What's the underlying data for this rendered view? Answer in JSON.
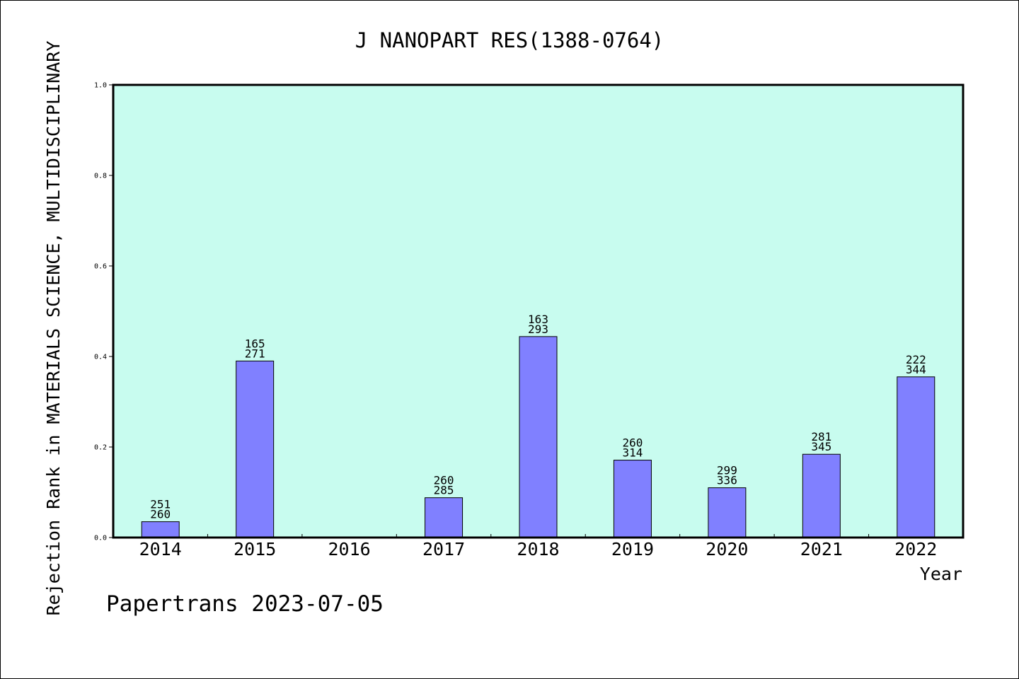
{
  "colors": {
    "plot_bg": "#c8fcef",
    "bar": "#8080ff",
    "frame": "#000000"
  },
  "chart_data": {
    "type": "bar",
    "title": "J NANOPART RES(1388-0764)",
    "xlabel": "Year",
    "ylabel": "Rejection Rank in MATERIALS SCIENCE, MULTIDISCIPLINARY",
    "ylim": [
      0,
      1.0
    ],
    "yticks": [
      "0.0",
      "0.2",
      "0.4",
      "0.6",
      "0.8",
      "1.0"
    ],
    "grid": false,
    "categories": [
      "2014",
      "2015",
      "2016",
      "2017",
      "2018",
      "2019",
      "2020",
      "2021",
      "2022"
    ],
    "values": [
      0.035,
      0.39,
      null,
      0.088,
      0.444,
      0.171,
      0.11,
      0.184,
      0.355
    ],
    "label_top": [
      "251",
      "165",
      "",
      "260",
      "163",
      "260",
      "299",
      "281",
      "222"
    ],
    "label_bottom": [
      "260",
      "271",
      "",
      "285",
      "293",
      "314",
      "336",
      "345",
      "344"
    ]
  },
  "footer": "Papertrans 2023-07-05"
}
